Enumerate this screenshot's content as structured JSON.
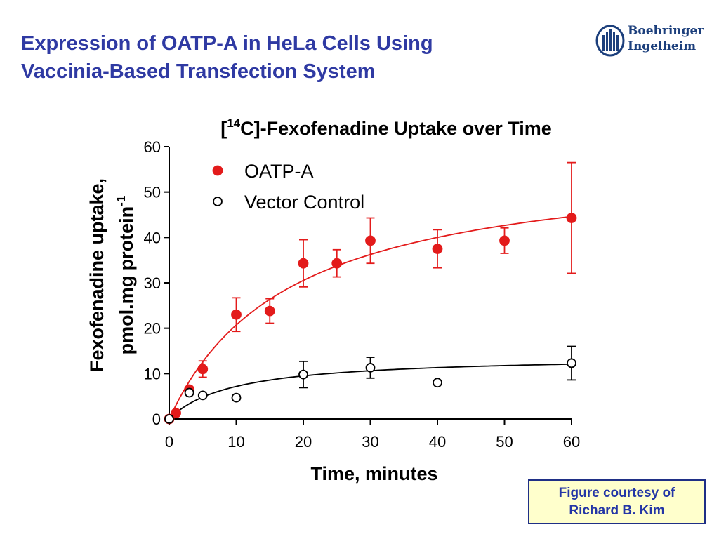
{
  "slide": {
    "title_line1": "Expression of OATP-A in HeLa Cells Using",
    "title_line2": "Vaccinia-Based Transfection System",
    "logo_line1": "Boehringer",
    "logo_line2": "Ingelheim",
    "courtesy_line1": "Figure courtesy of",
    "courtesy_line2": "Richard B. Kim"
  },
  "colors": {
    "title": "#2f3aa3",
    "logo": "#1c3f7c",
    "oatp": "#e31b1b",
    "control": "#000000",
    "courtesy_bg": "#ffffcc"
  },
  "chart_data": {
    "type": "scatter",
    "title_prefix": "[",
    "title_superscript": "14",
    "title_main": "C]-Fexofenadine Uptake over Time",
    "xlabel": "Time, minutes",
    "ylabel_line1": "Fexofenadine uptake,",
    "ylabel_line2": "pmol.mg protein",
    "ylabel_superscript": "-1",
    "xlim": [
      0,
      60
    ],
    "ylim": [
      0,
      60
    ],
    "xticks": [
      0,
      10,
      20,
      30,
      40,
      50,
      60
    ],
    "yticks": [
      0,
      10,
      20,
      30,
      40,
      50,
      60
    ],
    "legend_position": "top-left",
    "series": [
      {
        "name": "OATP-A",
        "marker": "filled-circle",
        "color": "#e31b1b",
        "x": [
          0,
          1,
          3,
          5,
          10,
          15,
          20,
          25,
          30,
          40,
          50,
          60
        ],
        "y": [
          0,
          1.3,
          6.5,
          11.0,
          23.0,
          23.8,
          34.3,
          34.3,
          39.3,
          37.5,
          39.3,
          44.3
        ],
        "err": [
          0,
          0,
          0,
          1.8,
          3.7,
          2.7,
          5.2,
          3.0,
          5.0,
          4.2,
          2.8,
          12.2
        ],
        "fit": {
          "model": "michaelis-menten",
          "vmax": 58,
          "k": 18
        }
      },
      {
        "name": "Vector Control",
        "marker": "open-circle",
        "color": "#000000",
        "x": [
          0,
          3,
          5,
          10,
          20,
          30,
          40,
          60
        ],
        "y": [
          0,
          5.8,
          5.2,
          4.7,
          9.8,
          11.3,
          8.0,
          12.3
        ],
        "err": [
          0,
          0,
          0,
          0,
          2.9,
          2.3,
          0,
          3.7
        ],
        "fit": {
          "model": "michaelis-menten",
          "vmax": 14,
          "k": 9.5
        }
      }
    ]
  }
}
